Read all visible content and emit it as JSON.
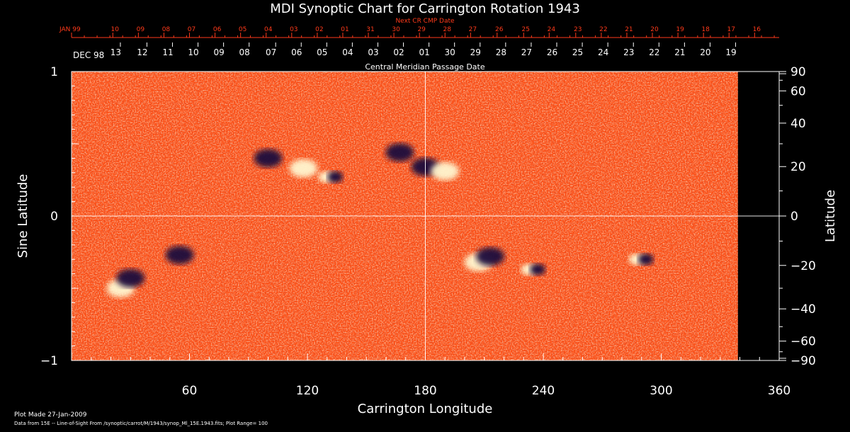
{
  "chart_data": {
    "type": "heatmap",
    "title": "MDI Synoptic Chart for Carrington Rotation 1943",
    "xlabel": "Carrington Longitude",
    "ylabel_left": "Sine Latitude",
    "ylabel_right": "Latitude",
    "top_axis_label": "Central Meridian Passage Date",
    "next_cr_label": "Next CR CMP Date",
    "xlim": [
      0,
      360
    ],
    "ylim": [
      -1,
      1
    ],
    "x_ticks": [
      60,
      120,
      180,
      240,
      300,
      360
    ],
    "y_left_ticks": [
      {
        "v": 1,
        "label": "1"
      },
      {
        "v": 0,
        "label": "0"
      },
      {
        "v": -1,
        "label": "−1"
      }
    ],
    "y_right_ticks": [
      {
        "lat": 90,
        "label": "90"
      },
      {
        "lat": 60,
        "label": "60"
      },
      {
        "lat": 40,
        "label": "40"
      },
      {
        "lat": 20,
        "label": "20"
      },
      {
        "lat": 0,
        "label": "0"
      },
      {
        "lat": -20,
        "label": "−20"
      },
      {
        "lat": -40,
        "label": "−40"
      },
      {
        "lat": -60,
        "label": "−60"
      },
      {
        "lat": -90,
        "label": "−90"
      }
    ],
    "cmp_dates": [
      {
        "lon": 0,
        "label": "DEC 98"
      },
      {
        "lon": 22.5,
        "label": "13"
      },
      {
        "lon": 36,
        "label": "12"
      },
      {
        "lon": 49,
        "label": "11"
      },
      {
        "lon": 62,
        "label": "10"
      },
      {
        "lon": 75,
        "label": "09"
      },
      {
        "lon": 88,
        "label": "08"
      },
      {
        "lon": 101.5,
        "label": "07"
      },
      {
        "lon": 114.5,
        "label": "06"
      },
      {
        "lon": 127.5,
        "label": "05"
      },
      {
        "lon": 140.5,
        "label": "04"
      },
      {
        "lon": 153.5,
        "label": "03"
      },
      {
        "lon": 166.5,
        "label": "02"
      },
      {
        "lon": 179.5,
        "label": "01"
      },
      {
        "lon": 192.5,
        "label": "30"
      },
      {
        "lon": 205.5,
        "label": "29"
      },
      {
        "lon": 218.5,
        "label": "28"
      },
      {
        "lon": 231.5,
        "label": "27"
      },
      {
        "lon": 244.5,
        "label": "26"
      },
      {
        "lon": 257.5,
        "label": "25"
      },
      {
        "lon": 270.5,
        "label": "24"
      },
      {
        "lon": 283.5,
        "label": "23"
      },
      {
        "lon": 296.5,
        "label": "22"
      },
      {
        "lon": 309.5,
        "label": "21"
      },
      {
        "lon": 322.5,
        "label": "20"
      },
      {
        "lon": 335.5,
        "label": "19"
      }
    ],
    "next_cr_dates": [
      {
        "lon": 0,
        "label": "JAN 99"
      },
      {
        "lon": 21,
        "label": "10"
      },
      {
        "lon": 34,
        "label": "09"
      },
      {
        "lon": 47,
        "label": "08"
      },
      {
        "lon": 60,
        "label": "07"
      },
      {
        "lon": 73,
        "label": "06"
      },
      {
        "lon": 86,
        "label": "05"
      },
      {
        "lon": 99,
        "label": "04"
      },
      {
        "lon": 112,
        "label": "03"
      },
      {
        "lon": 125,
        "label": "02"
      },
      {
        "lon": 138,
        "label": "01"
      },
      {
        "lon": 151,
        "label": "31"
      },
      {
        "lon": 164,
        "label": "30"
      },
      {
        "lon": 177,
        "label": "29"
      },
      {
        "lon": 190,
        "label": "28"
      },
      {
        "lon": 203,
        "label": "27"
      },
      {
        "lon": 216.5,
        "label": "26"
      },
      {
        "lon": 230,
        "label": "25"
      },
      {
        "lon": 243,
        "label": "24"
      },
      {
        "lon": 256.5,
        "label": "23"
      },
      {
        "lon": 269.5,
        "label": "22"
      },
      {
        "lon": 282.5,
        "label": "21"
      },
      {
        "lon": 295.5,
        "label": "20"
      },
      {
        "lon": 308.5,
        "label": "19"
      },
      {
        "lon": 321.5,
        "label": "18"
      },
      {
        "lon": 334.5,
        "label": "17"
      },
      {
        "lon": 347.5,
        "label": "16"
      }
    ],
    "grid": "lines at longitude 180 and sine latitude 0",
    "data_coverage_max_lon": 339,
    "colormap": {
      "low": "#140a3a",
      "mid": "#ff4d0d",
      "high": "#fff7d0"
    },
    "active_regions": [
      {
        "lon": 100,
        "sinlat": 0.4,
        "polarity": "negative"
      },
      {
        "lon": 118,
        "sinlat": 0.33,
        "polarity": "positive"
      },
      {
        "lon": 132,
        "sinlat": 0.27,
        "polarity": "mixed"
      },
      {
        "lon": 167,
        "sinlat": 0.44,
        "polarity": "negative"
      },
      {
        "lon": 180,
        "sinlat": 0.34,
        "polarity": "negative"
      },
      {
        "lon": 190,
        "sinlat": 0.31,
        "polarity": "positive"
      },
      {
        "lon": 25,
        "sinlat": -0.5,
        "polarity": "positive"
      },
      {
        "lon": 30,
        "sinlat": -0.43,
        "polarity": "negative"
      },
      {
        "lon": 55,
        "sinlat": -0.27,
        "polarity": "negative"
      },
      {
        "lon": 207,
        "sinlat": -0.32,
        "polarity": "positive"
      },
      {
        "lon": 213,
        "sinlat": -0.28,
        "polarity": "negative"
      },
      {
        "lon": 235,
        "sinlat": -0.37,
        "polarity": "mixed"
      },
      {
        "lon": 290,
        "sinlat": -0.3,
        "polarity": "mixed"
      }
    ]
  },
  "footer": {
    "made": "Plot Made 27-Jan-2009",
    "source": "Data from 15E -- Line-of-Sight From /synoptic/carrot/M/1943/synop_Ml_15E.1943.fits; Plot Range= 100"
  }
}
